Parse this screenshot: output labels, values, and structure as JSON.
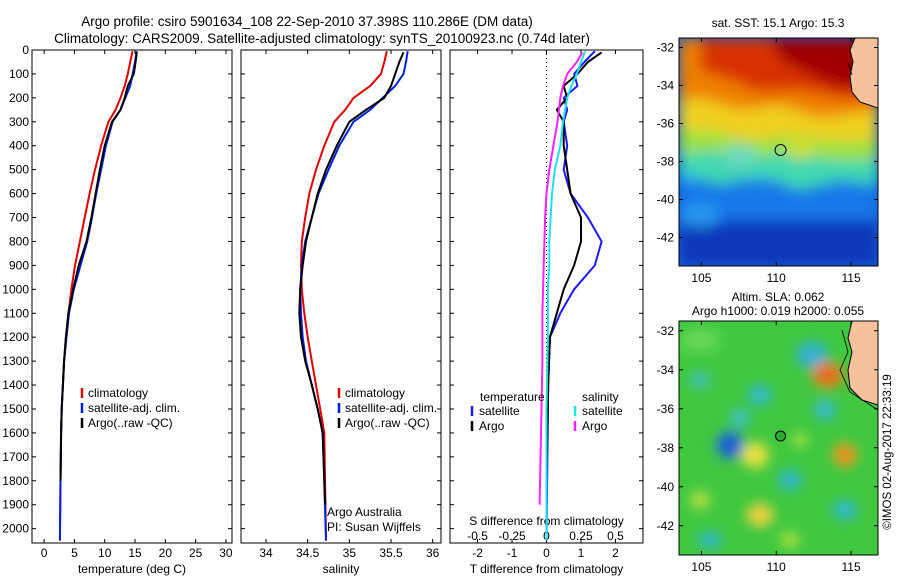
{
  "header": {
    "line1": "Argo profile: csiro 5901634_108 22-Sep-2010 37.398S 110.286E (DM data)",
    "line2": "Climatology: CARS2009. Satellite-adjusted climatology: synTS_20100923.nc (0.74d later)"
  },
  "colors": {
    "climatology": "#e00000",
    "satellite": "#0020e0",
    "argo": "#000000",
    "sat_T": "#1a1aff",
    "sat_S": "#20e0e8",
    "argo_S": "#ff20ff"
  },
  "chart_data": [
    {
      "type": "line",
      "xlabel": "temperature (deg C)",
      "xlim": [
        -2,
        31
      ],
      "ylim": [
        2060,
        0
      ],
      "y_reversed": true,
      "xticks": [
        0,
        5,
        10,
        15,
        20,
        25,
        30
      ],
      "yticks": [
        0,
        100,
        200,
        300,
        400,
        500,
        600,
        700,
        800,
        900,
        1000,
        1100,
        1200,
        1300,
        1400,
        1500,
        1600,
        1700,
        1800,
        1900,
        2000
      ],
      "legend": [
        "climatology",
        "satellite-adj. clim.",
        "Argo(..raw -QC)"
      ],
      "series": [
        {
          "name": "climatology",
          "color": "#e00000",
          "x": [
            14.6,
            14.2,
            13.8,
            13.3,
            12.6,
            11.8,
            10.6,
            9.4,
            8.4,
            7.5,
            6.7,
            5.9,
            5.1,
            4.5,
            4.0,
            3.6,
            3.3,
            3.1,
            2.9,
            2.8,
            2.7,
            2.6
          ],
          "y": [
            5,
            50,
            100,
            150,
            200,
            250,
            300,
            400,
            500,
            600,
            700,
            800,
            900,
            1000,
            1100,
            1200,
            1300,
            1400,
            1500,
            1600,
            1800,
            2050
          ]
        },
        {
          "name": "satellite-adj. clim.",
          "color": "#0020e0",
          "x": [
            15.3,
            15.0,
            14.6,
            14.2,
            13.4,
            12.6,
            11.3,
            10.2,
            9.4,
            8.6,
            7.9,
            7.1,
            6.0,
            4.9,
            4.1,
            3.7,
            3.3,
            3.1,
            2.9,
            2.8,
            2.7,
            2.6
          ],
          "y": [
            5,
            50,
            100,
            150,
            200,
            250,
            300,
            400,
            500,
            600,
            700,
            800,
            900,
            1000,
            1100,
            1200,
            1300,
            1400,
            1500,
            1600,
            1800,
            2050
          ]
        },
        {
          "name": "Argo(..raw -QC)",
          "color": "#000000",
          "x": [
            15.3,
            15.1,
            14.8,
            13.8,
            13.3,
            12.6,
            11.2,
            10.0,
            9.2,
            8.5,
            7.8,
            7.0,
            5.7,
            4.8,
            4.0,
            3.6,
            3.3,
            3.1,
            2.9,
            2.8,
            2.7
          ],
          "y": [
            10,
            50,
            100,
            150,
            200,
            250,
            300,
            400,
            500,
            600,
            700,
            800,
            900,
            1000,
            1100,
            1200,
            1300,
            1400,
            1500,
            1600,
            1800
          ]
        }
      ]
    },
    {
      "type": "line",
      "xlabel": "salinity",
      "xlim": [
        33.7,
        36.1
      ],
      "ylim": [
        2060,
        0
      ],
      "y_reversed": true,
      "xticks": [
        34,
        34.5,
        35,
        35.5,
        36
      ],
      "annotation": [
        "Argo Australia",
        "PI: Susan Wijffels"
      ],
      "legend": [
        "climatology",
        "satellite-adj. clim.",
        "Argo(..raw -QC)"
      ],
      "series": [
        {
          "name": "climatology",
          "color": "#e00000",
          "x": [
            35.45,
            35.42,
            35.38,
            35.25,
            35.05,
            34.95,
            34.82,
            34.7,
            34.6,
            34.52,
            34.47,
            34.43,
            34.42,
            34.43,
            34.46,
            34.5,
            34.55,
            34.6,
            34.65,
            34.7,
            34.72
          ],
          "y": [
            5,
            50,
            100,
            150,
            200,
            250,
            300,
            400,
            500,
            600,
            700,
            800,
            900,
            1000,
            1100,
            1200,
            1300,
            1400,
            1500,
            1600,
            2050
          ]
        },
        {
          "name": "satellite-adj. clim.",
          "color": "#0020e0",
          "x": [
            35.7,
            35.68,
            35.65,
            35.55,
            35.4,
            35.25,
            35.05,
            34.88,
            34.75,
            34.63,
            34.55,
            34.47,
            34.43,
            34.41,
            34.42,
            34.44,
            34.48,
            34.55,
            34.62,
            34.68,
            34.72
          ],
          "y": [
            5,
            50,
            100,
            150,
            200,
            250,
            300,
            400,
            500,
            600,
            700,
            800,
            900,
            1000,
            1100,
            1200,
            1300,
            1400,
            1500,
            1600,
            2050
          ]
        },
        {
          "name": "Argo(..raw -QC)",
          "color": "#000000",
          "x": [
            35.65,
            35.6,
            35.55,
            35.5,
            35.42,
            35.2,
            35.0,
            34.85,
            34.72,
            34.62,
            34.55,
            34.48,
            34.44,
            34.41,
            34.4,
            34.42,
            34.47,
            34.55,
            34.62,
            34.68,
            34.71
          ],
          "y": [
            10,
            50,
            100,
            150,
            200,
            250,
            300,
            400,
            500,
            600,
            700,
            800,
            900,
            1000,
            1100,
            1200,
            1300,
            1400,
            1500,
            1600,
            1900
          ]
        }
      ]
    },
    {
      "type": "line",
      "xlabel": "T difference from climatology",
      "xlabel_top": "S difference from climatology",
      "xlim": [
        -2.8,
        2.8
      ],
      "ylim": [
        2060,
        0
      ],
      "y_reversed": true,
      "xticks_bottom": [
        -2,
        -1,
        0,
        1,
        2
      ],
      "xticks_top": [
        {
          "value": -0.5,
          "label": "-0.5"
        },
        {
          "value": -0.25,
          "label": "-0.25"
        },
        {
          "value": 0,
          "label": "0"
        },
        {
          "value": 0.25,
          "label": "0.25"
        },
        {
          "value": 0.5,
          "label": "0.5"
        }
      ],
      "legend_left": {
        "title": "temperature",
        "items": [
          "satellite",
          "Argo"
        ]
      },
      "legend_right": {
        "title": "salinity",
        "items": [
          "satellite",
          "Argo"
        ]
      },
      "series": [
        {
          "name": "satellite",
          "group": "temperature",
          "color": "#1a1aff",
          "x": [
            1.4,
            1.1,
            0.8,
            0.9,
            0.5,
            0.6,
            0.5,
            0.6,
            0.5,
            0.7,
            1.2,
            1.6,
            1.4,
            0.8,
            0.4,
            0.1,
            0.05,
            0.0
          ],
          "y": [
            5,
            50,
            100,
            150,
            200,
            250,
            300,
            400,
            500,
            600,
            700,
            800,
            900,
            1000,
            1100,
            1200,
            1400,
            2050
          ]
        },
        {
          "name": "Argo",
          "group": "temperature",
          "color": "#000000",
          "x": [
            1.6,
            1.2,
            0.9,
            0.5,
            0.6,
            0.3,
            0.5,
            0.5,
            0.6,
            0.7,
            1.0,
            1.0,
            0.8,
            0.5,
            0.3,
            0.1,
            0.05,
            0.0
          ],
          "y": [
            10,
            50,
            100,
            150,
            200,
            250,
            300,
            400,
            500,
            600,
            700,
            800,
            900,
            1000,
            1100,
            1200,
            1400,
            1800
          ]
        },
        {
          "name": "satellite",
          "group": "salinity",
          "color": "#20e0e8",
          "x": [
            0.28,
            0.25,
            0.22,
            0.18,
            0.15,
            0.12,
            0.1,
            0.06,
            0.04,
            0.03,
            0.02,
            0.02,
            0.01,
            0.01,
            0.0,
            0.0
          ],
          "y": [
            5,
            50,
            100,
            150,
            200,
            300,
            400,
            500,
            600,
            700,
            800,
            900,
            1000,
            1200,
            1500,
            2050
          ]
        },
        {
          "name": "Argo",
          "group": "salinity",
          "color": "#ff20ff",
          "x": [
            0.26,
            0.22,
            0.15,
            0.12,
            0.1,
            0.08,
            0.05,
            0.02,
            0.0,
            -0.01,
            -0.02,
            -0.03,
            -0.03,
            -0.04,
            -0.05
          ],
          "y": [
            10,
            50,
            100,
            150,
            200,
            300,
            400,
            500,
            600,
            700,
            900,
            1100,
            1300,
            1600,
            1900
          ]
        }
      ]
    },
    {
      "type": "heatmap",
      "title": "sat. SST: 15.1  Argo: 15.3",
      "xlim": [
        103.5,
        116.8
      ],
      "ylim": [
        -43.5,
        -31.5
      ],
      "xticks": [
        105,
        110,
        115
      ],
      "yticks": [
        -32,
        -34,
        -36,
        -38,
        -40,
        -42
      ],
      "marker": {
        "lon": 110.286,
        "lat": -37.398
      }
    },
    {
      "type": "heatmap",
      "title": "Altim. SLA: 0.062",
      "subtitle": "Argo h1000: 0.019 h2000: 0.055",
      "xlim": [
        103.5,
        116.8
      ],
      "ylim": [
        -43.5,
        -31.5
      ],
      "xticks": [
        105,
        110,
        115
      ],
      "yticks": [
        -32,
        -34,
        -36,
        -38,
        -40,
        -42
      ],
      "marker": {
        "lon": 110.286,
        "lat": -37.398
      }
    }
  ],
  "side_credit": "©IMOS 02-Aug-2017 22:33:19"
}
